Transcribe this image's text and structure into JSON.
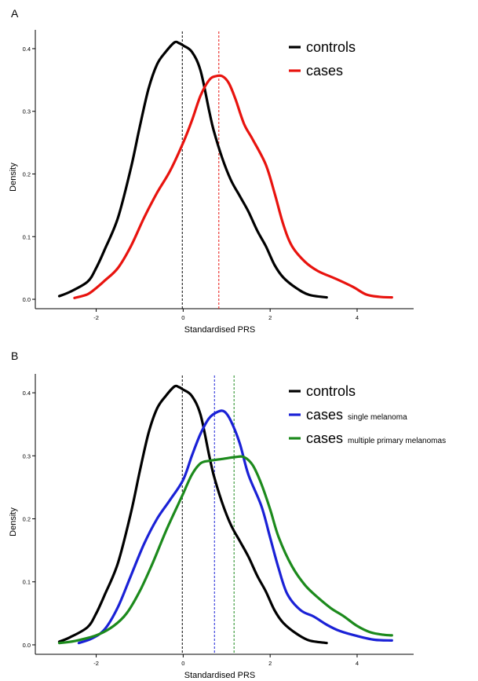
{
  "chart_data": [
    {
      "panel": "A",
      "type": "line",
      "title": "",
      "xlabel": "Standardised PRS",
      "ylabel": "Density",
      "xlim": [
        -3.4,
        5.3
      ],
      "ylim": [
        -0.015,
        0.43
      ],
      "xticks": [
        -2,
        0,
        2,
        4
      ],
      "xtick_labels": [
        "-2",
        "0",
        "2",
        "4"
      ],
      "yticks": [
        0.0,
        0.1,
        0.2,
        0.3,
        0.4
      ],
      "ytick_labels": [
        "0.0",
        "0.1",
        "0.2",
        "0.3",
        "0.4"
      ],
      "grid": false,
      "legend": "top-right",
      "series": [
        {
          "name": "controls",
          "color": "#000000",
          "mean_line": -0.02,
          "x": [
            -2.85,
            -2.6,
            -2.2,
            -2.0,
            -1.8,
            -1.5,
            -1.2,
            -1.0,
            -0.8,
            -0.6,
            -0.4,
            -0.2,
            -0.1,
            0.0,
            0.2,
            0.4,
            0.6,
            0.7,
            0.9,
            1.1,
            1.3,
            1.5,
            1.7,
            1.9,
            2.1,
            2.3,
            2.6,
            2.9,
            3.3
          ],
          "y": [
            0.005,
            0.012,
            0.028,
            0.05,
            0.08,
            0.13,
            0.21,
            0.275,
            0.335,
            0.375,
            0.395,
            0.41,
            0.409,
            0.405,
            0.395,
            0.365,
            0.3,
            0.27,
            0.225,
            0.19,
            0.165,
            0.14,
            0.11,
            0.085,
            0.055,
            0.035,
            0.018,
            0.007,
            0.003
          ]
        },
        {
          "name": "cases",
          "color": "#e8130e",
          "mean_line": 0.82,
          "x": [
            -2.5,
            -2.2,
            -2.0,
            -1.8,
            -1.5,
            -1.2,
            -0.9,
            -0.6,
            -0.3,
            0.0,
            0.2,
            0.4,
            0.6,
            0.75,
            0.9,
            1.05,
            1.2,
            1.4,
            1.6,
            1.9,
            2.1,
            2.3,
            2.5,
            2.8,
            3.1,
            3.5,
            3.9,
            4.2,
            4.5,
            4.8
          ],
          "y": [
            0.002,
            0.008,
            0.018,
            0.03,
            0.05,
            0.085,
            0.13,
            0.17,
            0.205,
            0.25,
            0.285,
            0.325,
            0.35,
            0.356,
            0.356,
            0.345,
            0.32,
            0.28,
            0.255,
            0.215,
            0.17,
            0.12,
            0.085,
            0.06,
            0.045,
            0.033,
            0.02,
            0.008,
            0.004,
            0.003
          ]
        }
      ],
      "legend_entries": [
        {
          "label": "controls",
          "sub": "",
          "color": "#000000"
        },
        {
          "label": "cases",
          "sub": "",
          "color": "#e8130e"
        }
      ]
    },
    {
      "panel": "B",
      "type": "line",
      "title": "",
      "xlabel": "Standardised PRS",
      "ylabel": "Density",
      "xlim": [
        -3.4,
        5.3
      ],
      "ylim": [
        -0.015,
        0.43
      ],
      "xticks": [
        -2,
        0,
        2,
        4
      ],
      "xtick_labels": [
        "-2",
        "0",
        "2",
        "4"
      ],
      "yticks": [
        0.0,
        0.1,
        0.2,
        0.3,
        0.4
      ],
      "ytick_labels": [
        "0.0",
        "0.1",
        "0.2",
        "0.3",
        "0.4"
      ],
      "grid": false,
      "legend": "top-right",
      "series": [
        {
          "name": "controls",
          "color": "#000000",
          "mean_line": -0.02,
          "x": [
            -2.85,
            -2.6,
            -2.2,
            -2.0,
            -1.8,
            -1.5,
            -1.2,
            -1.0,
            -0.8,
            -0.6,
            -0.4,
            -0.2,
            -0.1,
            0.0,
            0.2,
            0.4,
            0.6,
            0.7,
            0.9,
            1.1,
            1.3,
            1.5,
            1.7,
            1.9,
            2.1,
            2.3,
            2.6,
            2.9,
            3.3
          ],
          "y": [
            0.005,
            0.012,
            0.028,
            0.05,
            0.08,
            0.13,
            0.21,
            0.275,
            0.335,
            0.375,
            0.395,
            0.41,
            0.409,
            0.405,
            0.395,
            0.365,
            0.3,
            0.27,
            0.225,
            0.19,
            0.165,
            0.14,
            0.11,
            0.085,
            0.055,
            0.035,
            0.018,
            0.007,
            0.003
          ]
        },
        {
          "name": "cases single melanoma",
          "color": "#1a21d6",
          "mean_line": 0.72,
          "x": [
            -2.4,
            -2.1,
            -1.8,
            -1.5,
            -1.2,
            -0.9,
            -0.6,
            -0.3,
            0.0,
            0.2,
            0.4,
            0.6,
            0.8,
            0.95,
            1.1,
            1.3,
            1.5,
            1.8,
            2.0,
            2.2,
            2.4,
            2.7,
            3.0,
            3.3,
            3.6,
            4.0,
            4.4,
            4.8
          ],
          "y": [
            0.003,
            0.01,
            0.025,
            0.06,
            0.11,
            0.16,
            0.2,
            0.23,
            0.262,
            0.3,
            0.335,
            0.36,
            0.37,
            0.37,
            0.355,
            0.32,
            0.27,
            0.22,
            0.17,
            0.12,
            0.08,
            0.055,
            0.045,
            0.032,
            0.022,
            0.014,
            0.008,
            0.007
          ]
        },
        {
          "name": "cases multiple primary melanomas",
          "color": "#1c8a1c",
          "mean_line": 1.17,
          "x": [
            -2.85,
            -2.5,
            -2.0,
            -1.6,
            -1.3,
            -1.0,
            -0.7,
            -0.4,
            -0.1,
            0.0,
            0.2,
            0.4,
            0.6,
            0.9,
            1.2,
            1.4,
            1.6,
            1.8,
            2.0,
            2.2,
            2.5,
            2.8,
            3.1,
            3.4,
            3.7,
            4.0,
            4.3,
            4.6,
            4.8
          ],
          "y": [
            0.003,
            0.006,
            0.015,
            0.03,
            0.05,
            0.085,
            0.13,
            0.18,
            0.225,
            0.24,
            0.27,
            0.288,
            0.292,
            0.295,
            0.298,
            0.298,
            0.285,
            0.255,
            0.215,
            0.17,
            0.125,
            0.095,
            0.075,
            0.058,
            0.045,
            0.03,
            0.02,
            0.016,
            0.015
          ]
        }
      ],
      "legend_entries": [
        {
          "label": "controls",
          "sub": "",
          "color": "#000000"
        },
        {
          "label": "cases",
          "sub": "single melanoma",
          "color": "#1a21d6"
        },
        {
          "label": "cases",
          "sub": "multiple primary melanomas",
          "color": "#1c8a1c"
        }
      ]
    }
  ]
}
